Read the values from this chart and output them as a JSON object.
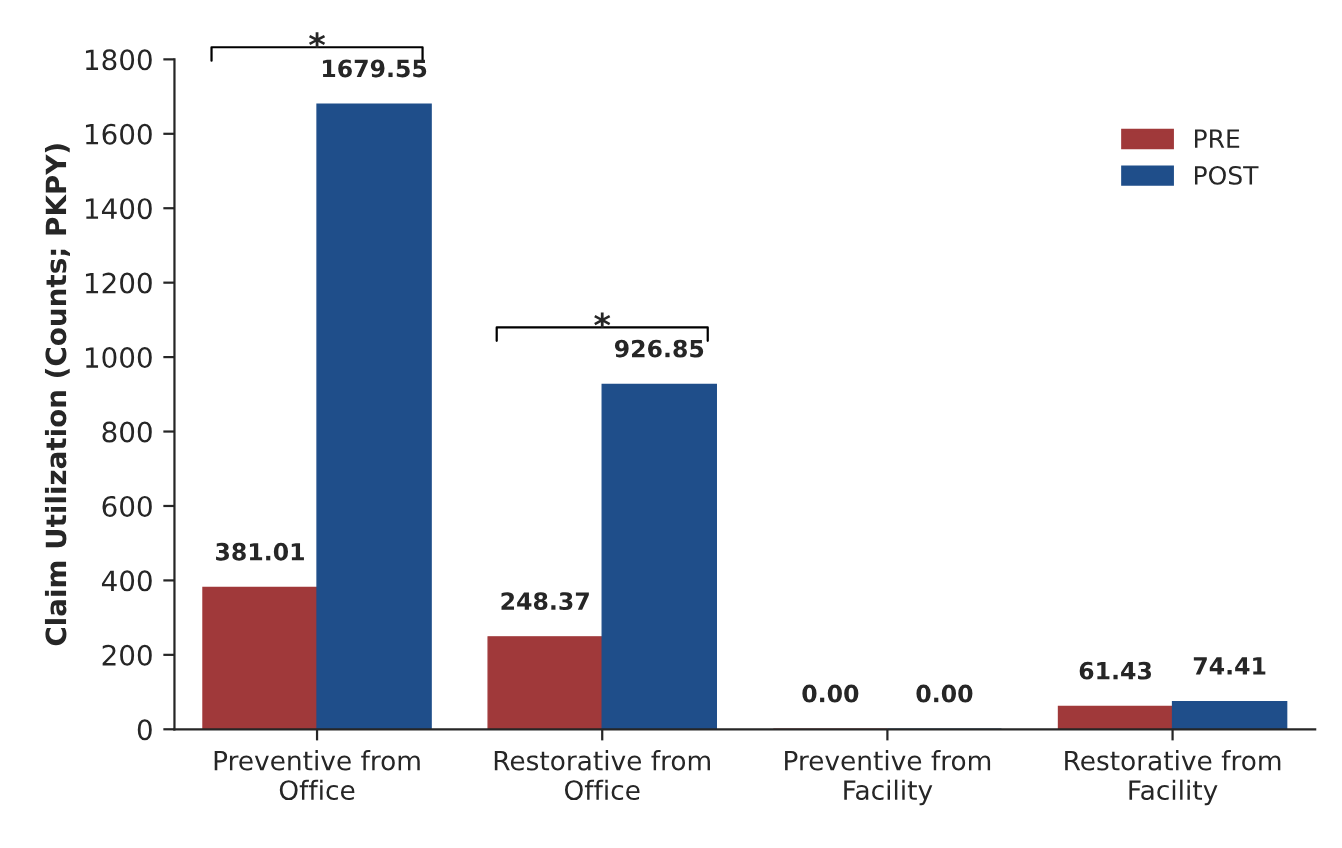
{
  "chart_data": {
    "type": "bar",
    "categories": [
      "Preventive from\nOffice",
      "Restorative from\nOffice",
      "Preventive from\nFacility",
      "Restorative from\nFacility"
    ],
    "series": [
      {
        "name": "PRE",
        "color": "#a0393a",
        "values": [
          381.01,
          248.37,
          0.0,
          61.43
        ],
        "value_labels": [
          "381.01",
          "248.37",
          "0.00",
          "61.43"
        ]
      },
      {
        "name": "POST",
        "color": "#1f4e8a",
        "values": [
          1679.55,
          926.85,
          0.0,
          74.41
        ],
        "value_labels": [
          "1679.55",
          "926.85",
          "0.00",
          "74.41"
        ]
      }
    ],
    "ylabel": "Claim Utilization (Counts; PKPY)",
    "ylim": [
      0,
      1800
    ],
    "yticks": [
      0,
      200,
      400,
      600,
      800,
      1000,
      1200,
      1400,
      1600,
      1800
    ],
    "annotations": [
      "*",
      "*"
    ],
    "grid": false,
    "legend": "top right"
  }
}
